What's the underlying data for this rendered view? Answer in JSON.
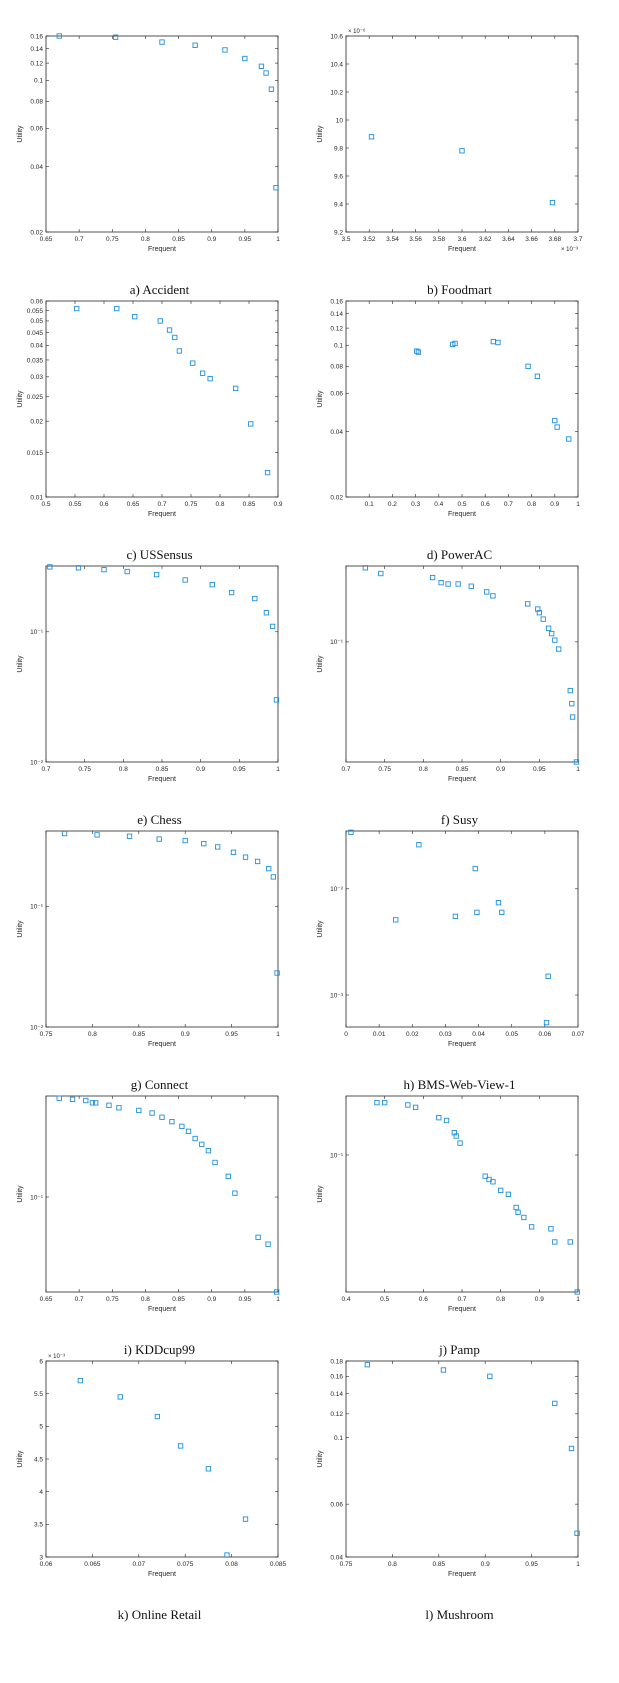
{
  "colors": {
    "marker": "#1f8fdc",
    "axis": "#262626"
  },
  "chart_data": [
    {
      "type": "scatter",
      "caption": "a) Accident",
      "xlabel": "Frequent",
      "ylabel": "Utility",
      "xlim": [
        0.65,
        1
      ],
      "ylim": [
        0.02,
        0.16
      ],
      "yscale": "log",
      "xticks": [
        0.65,
        0.7,
        0.75,
        0.8,
        0.85,
        0.9,
        0.95,
        1
      ],
      "xticklabels": [
        "0.65",
        "0.7",
        "0.75",
        "0.8",
        "0.85",
        "0.9",
        "0.95",
        "1"
      ],
      "yticks": [
        0.02,
        0.04,
        0.06,
        0.08,
        0.1,
        0.12,
        0.14,
        0.16
      ],
      "yticklabels": [
        "0.02",
        "0.04",
        "0.06",
        "0.08",
        "0.1",
        "0.12",
        "0.14",
        "0.16"
      ],
      "x": [
        0.67,
        0.755,
        0.825,
        0.875,
        0.92,
        0.95,
        0.975,
        0.982,
        0.99,
        0.997
      ],
      "y": [
        0.16,
        0.158,
        0.15,
        0.145,
        0.138,
        0.126,
        0.116,
        0.108,
        0.091,
        0.032
      ]
    },
    {
      "type": "scatter",
      "caption": "b) Foodmart",
      "xlabel": "Frequent",
      "ylabel": "Utility",
      "xlim": [
        3.5,
        3.7
      ],
      "ylim": [
        9.2,
        10.6
      ],
      "yscale": "linear",
      "xticks": [
        3.5,
        3.52,
        3.54,
        3.56,
        3.58,
        3.6,
        3.62,
        3.64,
        3.66,
        3.68,
        3.7
      ],
      "xticklabels": [
        "3.5",
        "3.52",
        "3.54",
        "3.56",
        "3.58",
        "3.6",
        "3.62",
        "3.64",
        "3.66",
        "3.68",
        "3.7"
      ],
      "yticks": [
        9.2,
        9.4,
        9.6,
        9.8,
        10,
        10.2,
        10.4,
        10.6
      ],
      "yticklabels": [
        "9.2",
        "9.4",
        "9.6",
        "9.8",
        "10",
        "10.2",
        "10.4",
        "10.6"
      ],
      "x_exponent": "× 10⁻³",
      "y_exponent": "× 10⁻⁶",
      "x": [
        3.522,
        3.6,
        3.678
      ],
      "y": [
        9.88,
        9.78,
        9.41
      ]
    },
    {
      "type": "scatter",
      "caption": "c) USSensus",
      "xlabel": "Frequent",
      "ylabel": "Utility",
      "xlim": [
        0.5,
        0.9
      ],
      "ylim": [
        0.01,
        0.06
      ],
      "yscale": "log",
      "xticks": [
        0.5,
        0.55,
        0.6,
        0.65,
        0.7,
        0.75,
        0.8,
        0.85,
        0.9
      ],
      "xticklabels": [
        "0.5",
        "0.55",
        "0.6",
        "0.65",
        "0.7",
        "0.75",
        "0.8",
        "0.85",
        "0.9"
      ],
      "yticks": [
        0.01,
        0.015,
        0.02,
        0.025,
        0.03,
        0.035,
        0.04,
        0.045,
        0.05,
        0.055,
        0.06
      ],
      "yticklabels": [
        "0.01",
        "0.015",
        "0.02",
        "0.025",
        "0.03",
        "0.035",
        "0.04",
        "0.045",
        "0.05",
        "0.055",
        "0.06"
      ],
      "x": [
        0.553,
        0.622,
        0.653,
        0.697,
        0.713,
        0.722,
        0.73,
        0.753,
        0.77,
        0.783,
        0.827,
        0.853,
        0.882
      ],
      "y": [
        0.056,
        0.056,
        0.052,
        0.05,
        0.046,
        0.043,
        0.038,
        0.034,
        0.031,
        0.0295,
        0.027,
        0.0195,
        0.0125
      ]
    },
    {
      "type": "scatter",
      "caption": "d) PowerAC",
      "xlabel": "Frequent",
      "ylabel": "Utility",
      "xlim": [
        0,
        1
      ],
      "ylim": [
        0.02,
        0.16
      ],
      "yscale": "log",
      "xticks": [
        0.1,
        0.2,
        0.3,
        0.4,
        0.5,
        0.6,
        0.7,
        0.8,
        0.9,
        1
      ],
      "xticklabels": [
        "0.1",
        "0.2",
        "0.3",
        "0.4",
        "0.5",
        "0.6",
        "0.7",
        "0.8",
        "0.9",
        "1"
      ],
      "yticks": [
        0.02,
        0.04,
        0.06,
        0.08,
        0.1,
        0.12,
        0.14,
        0.16
      ],
      "yticklabels": [
        "0.02",
        "0.04",
        "0.06",
        "0.08",
        "0.1",
        "0.12",
        "0.14",
        "0.16"
      ],
      "x": [
        0.305,
        0.312,
        0.46,
        0.47,
        0.635,
        0.655,
        0.785,
        0.825,
        0.9,
        0.91,
        0.96
      ],
      "y": [
        0.094,
        0.093,
        0.101,
        0.102,
        0.104,
        0.103,
        0.08,
        0.072,
        0.045,
        0.042,
        0.037
      ]
    },
    {
      "type": "scatter",
      "caption": "e) Chess",
      "xlabel": "Frequent",
      "ylabel": "Utility",
      "xlim": [
        0.7,
        1
      ],
      "ylim": [
        0.01,
        0.32
      ],
      "yscale": "log",
      "xticks": [
        0.7,
        0.75,
        0.8,
        0.85,
        0.9,
        0.95,
        1
      ],
      "xticklabels": [
        "0.7",
        "0.75",
        "0.8",
        "0.85",
        "0.9",
        "0.95",
        "1"
      ],
      "yticks": [
        0.01,
        0.1
      ],
      "yticklabels": [
        "10⁻²",
        "10⁻¹"
      ],
      "x": [
        0.705,
        0.742,
        0.775,
        0.805,
        0.843,
        0.88,
        0.915,
        0.94,
        0.97,
        0.985,
        0.993,
        0.998
      ],
      "y": [
        0.315,
        0.31,
        0.3,
        0.29,
        0.275,
        0.25,
        0.23,
        0.2,
        0.18,
        0.14,
        0.11,
        0.03
      ]
    },
    {
      "type": "scatter",
      "caption": "f) Susy",
      "xlabel": "Frequent",
      "ylabel": "Utility",
      "xlim": [
        0.7,
        1
      ],
      "ylim": [
        0.025,
        0.24
      ],
      "yscale": "log",
      "xticks": [
        0.7,
        0.75,
        0.8,
        0.85,
        0.9,
        0.95,
        1
      ],
      "xticklabels": [
        "0.7",
        "0.75",
        "0.8",
        "0.85",
        "0.9",
        "0.95",
        "1"
      ],
      "yticks": [
        0.1
      ],
      "yticklabels": [
        "10⁻¹"
      ],
      "x": [
        0.725,
        0.745,
        0.812,
        0.823,
        0.832,
        0.845,
        0.862,
        0.882,
        0.89,
        0.935,
        0.948,
        0.95,
        0.955,
        0.962,
        0.966,
        0.97,
        0.975,
        0.99,
        0.992,
        0.993,
        0.998
      ],
      "y": [
        0.235,
        0.22,
        0.21,
        0.198,
        0.195,
        0.195,
        0.19,
        0.178,
        0.17,
        0.155,
        0.146,
        0.14,
        0.13,
        0.117,
        0.11,
        0.102,
        0.092,
        0.057,
        0.049,
        0.042,
        0.025
      ]
    },
    {
      "type": "scatter",
      "caption": "g) Connect",
      "xlabel": "Frequent",
      "ylabel": "Utility",
      "xlim": [
        0.75,
        1
      ],
      "ylim": [
        0.01,
        0.42
      ],
      "yscale": "log",
      "xticks": [
        0.75,
        0.8,
        0.85,
        0.9,
        0.95,
        1
      ],
      "xticklabels": [
        "0.75",
        "0.8",
        "0.85",
        "0.9",
        "0.95",
        "1"
      ],
      "yticks": [
        0.01,
        0.1
      ],
      "yticklabels": [
        "10⁻²",
        "10⁻¹"
      ],
      "x": [
        0.77,
        0.805,
        0.84,
        0.872,
        0.9,
        0.92,
        0.935,
        0.952,
        0.965,
        0.978,
        0.99,
        0.995,
        0.999
      ],
      "y": [
        0.4,
        0.39,
        0.38,
        0.36,
        0.35,
        0.33,
        0.31,
        0.28,
        0.255,
        0.235,
        0.205,
        0.175,
        0.028
      ]
    },
    {
      "type": "scatter",
      "caption": "h) BMS-Web-View-1",
      "xlabel": "Frequent",
      "ylabel": "Utility",
      "xlim": [
        0,
        0.07
      ],
      "ylim": [
        0.0005,
        0.035
      ],
      "yscale": "log",
      "xticks": [
        0,
        0.01,
        0.02,
        0.03,
        0.04,
        0.05,
        0.06,
        0.07
      ],
      "xticklabels": [
        "0",
        "0.01",
        "0.02",
        "0.03",
        "0.04",
        "0.05",
        "0.06",
        "0.07"
      ],
      "yticks": [
        0.001,
        0.01
      ],
      "yticklabels": [
        "10⁻³",
        "10⁻²"
      ],
      "x": [
        0.0015,
        0.022,
        0.015,
        0.033,
        0.0395,
        0.039,
        0.046,
        0.047,
        0.061,
        0.0605
      ],
      "y": [
        0.034,
        0.026,
        0.0051,
        0.0055,
        0.006,
        0.0155,
        0.0074,
        0.006,
        0.0015,
        0.00055
      ]
    },
    {
      "type": "scatter",
      "caption": "i) KDDcup99",
      "xlabel": "Frequent",
      "ylabel": "Utility",
      "xlim": [
        0.65,
        1
      ],
      "ylim": [
        0.03,
        0.36
      ],
      "yscale": "log",
      "xticks": [
        0.65,
        0.7,
        0.75,
        0.8,
        0.85,
        0.9,
        0.95,
        1
      ],
      "xticklabels": [
        "0.65",
        "0.7",
        "0.75",
        "0.8",
        "0.85",
        "0.9",
        "0.95",
        "1"
      ],
      "yticks": [
        0.1
      ],
      "yticklabels": [
        "10⁻¹"
      ],
      "x": [
        0.67,
        0.69,
        0.71,
        0.72,
        0.725,
        0.745,
        0.76,
        0.79,
        0.81,
        0.825,
        0.84,
        0.855,
        0.865,
        0.875,
        0.885,
        0.895,
        0.905,
        0.925,
        0.935,
        0.97,
        0.985,
        0.998
      ],
      "y": [
        0.35,
        0.345,
        0.34,
        0.33,
        0.33,
        0.32,
        0.31,
        0.3,
        0.29,
        0.275,
        0.26,
        0.245,
        0.23,
        0.21,
        0.195,
        0.18,
        0.155,
        0.13,
        0.105,
        0.06,
        0.055,
        0.03
      ]
    },
    {
      "type": "scatter",
      "caption": "j) Pamp",
      "xlabel": "Frequent",
      "ylabel": "Utility",
      "xlim": [
        0.4,
        1
      ],
      "ylim": [
        0.02,
        0.2
      ],
      "yscale": "log",
      "xticks": [
        0.4,
        0.5,
        0.6,
        0.7,
        0.8,
        0.9,
        1
      ],
      "xticklabels": [
        "0.4",
        "0.5",
        "0.6",
        "0.7",
        "0.8",
        "0.9",
        "1"
      ],
      "yticks": [
        0.1
      ],
      "yticklabels": [
        "10⁻¹"
      ],
      "x": [
        0.48,
        0.5,
        0.56,
        0.58,
        0.64,
        0.66,
        0.68,
        0.685,
        0.695,
        0.76,
        0.77,
        0.78,
        0.8,
        0.82,
        0.84,
        0.845,
        0.86,
        0.88,
        0.93,
        0.94,
        0.98,
        0.998
      ],
      "y": [
        0.185,
        0.185,
        0.18,
        0.175,
        0.155,
        0.15,
        0.13,
        0.125,
        0.115,
        0.078,
        0.075,
        0.073,
        0.066,
        0.063,
        0.054,
        0.051,
        0.048,
        0.043,
        0.042,
        0.036,
        0.036,
        0.02
      ]
    },
    {
      "type": "scatter",
      "caption": "k) Online Retail",
      "xlabel": "Frequent",
      "ylabel": "Utility",
      "xlim": [
        0.06,
        0.085
      ],
      "ylim": [
        3,
        6
      ],
      "yscale": "linear",
      "xticks": [
        0.06,
        0.065,
        0.07,
        0.075,
        0.08,
        0.085
      ],
      "xticklabels": [
        "0.06",
        "0.065",
        "0.07",
        "0.075",
        "0.08",
        "0.085"
      ],
      "yticks": [
        3,
        3.5,
        4,
        4.5,
        5,
        5.5,
        6
      ],
      "yticklabels": [
        "3",
        "3.5",
        "4",
        "4.5",
        "5",
        "5.5",
        "6"
      ],
      "y_exponent": "× 10⁻³",
      "x": [
        0.0637,
        0.068,
        0.072,
        0.0745,
        0.0775,
        0.0815,
        0.0795
      ],
      "y": [
        5.7,
        5.45,
        5.15,
        4.7,
        4.35,
        3.58,
        3.03
      ]
    },
    {
      "type": "scatter",
      "caption": "l) Mushroom",
      "xlabel": "Frequent",
      "ylabel": "Utility",
      "xlim": [
        0.75,
        1
      ],
      "ylim": [
        0.04,
        0.18
      ],
      "yscale": "log",
      "xticks": [
        0.75,
        0.8,
        0.85,
        0.9,
        0.95,
        1
      ],
      "xticklabels": [
        "0.75",
        "0.8",
        "0.85",
        "0.9",
        "0.95",
        "1"
      ],
      "yticks": [
        0.04,
        0.06,
        0.1,
        0.12,
        0.14,
        0.16,
        0.18
      ],
      "yticklabels": [
        "0.04",
        "0.06",
        "0.1",
        "0.12",
        "0.14",
        "0.16",
        "0.18"
      ],
      "x": [
        0.773,
        0.855,
        0.905,
        0.975,
        0.993,
        0.999
      ],
      "y": [
        0.175,
        0.168,
        0.16,
        0.13,
        0.092,
        0.048
      ]
    }
  ]
}
